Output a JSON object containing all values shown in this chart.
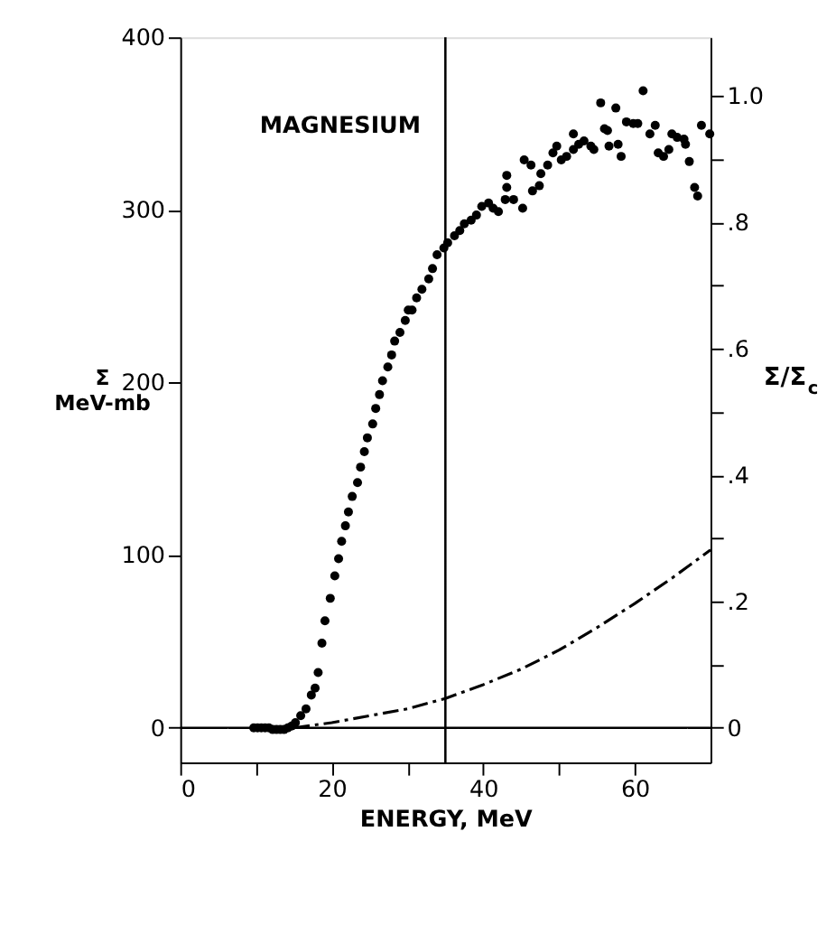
{
  "chart_data": {
    "type": "scatter",
    "xlabel": "ENERGY, MeV",
    "ylabel": "Σ MeV-mb",
    "y2label": "Σ/Σ$_{c}$",
    "annotations": [
      "MAGNESIUM"
    ],
    "xlim": [
      0,
      70
    ],
    "xticks": [
      0,
      {
        "value": 10,
        "label": null
      },
      20,
      {
        "value": 30,
        "label": null
      },
      40,
      {
        "value": 50,
        "label": null
      },
      60
    ],
    "ylim": [
      -20,
      400
    ],
    "yticks": [
      0,
      100,
      200,
      300,
      400
    ],
    "y2lim": [
      -0.0546,
      1.093
    ],
    "y2ticks": [
      {
        "value": 0,
        "label": "0"
      },
      {
        "value": 0.1,
        "label": null
      },
      {
        "value": 0.2,
        "label": ".2"
      },
      {
        "value": 0.3,
        "label": null
      },
      {
        "value": 0.4,
        "label": ".4"
      },
      {
        "value": 0.5,
        "label": null
      },
      {
        "value": 0.6,
        "label": ".6"
      },
      {
        "value": 0.7,
        "label": null
      },
      {
        "value": 0.8,
        "label": ".8"
      },
      {
        "value": 0.9,
        "label": null
      },
      {
        "value": 1.0,
        "label": "1.0"
      }
    ],
    "grid": false,
    "ref_lines": [
      {
        "axis": "x",
        "value": 35,
        "color": "#000000"
      },
      {
        "axis": "y2",
        "value": 0,
        "color": "#000000"
      }
    ],
    "series": [
      {
        "marker": "circle",
        "color": "#000000",
        "x": [
          9.7,
          10.2,
          10.7,
          11.2,
          11.7,
          12.2,
          12.7,
          13.2,
          13.7,
          14.2,
          14.7,
          15.2,
          15.9,
          16.6,
          17.3,
          17.8,
          18.2,
          18.7,
          19.1,
          19.8,
          20.4,
          20.9,
          21.3,
          21.8,
          22.2,
          22.7,
          23.4,
          23.8,
          24.3,
          24.7,
          25.4,
          25.8,
          26.3,
          26.7,
          27.4,
          27.9,
          28.3,
          29.0,
          29.7,
          30.1,
          30.6,
          31.2,
          31.9,
          32.8,
          33.3,
          33.9,
          34.8,
          35.3,
          36.2,
          36.9,
          37.5,
          38.4,
          39.1,
          39.8,
          40.7,
          41.3,
          42.0,
          42.9,
          43.1,
          43.1,
          44.0,
          45.2,
          45.4,
          46.3,
          46.5,
          47.4,
          47.6,
          48.5,
          49.2,
          49.7,
          50.3,
          51.0,
          51.9,
          51.9,
          52.6,
          53.3,
          54.2,
          54.6,
          55.5,
          56.0,
          56.4,
          56.6,
          57.5,
          57.8,
          58.2,
          58.9,
          59.8,
          60.4,
          61.1,
          62.0,
          62.7,
          63.1,
          63.8,
          64.5,
          64.9,
          65.6,
          66.5,
          66.7,
          67.2,
          67.9,
          68.3,
          68.8,
          69.9
        ],
        "values": [
          0,
          0,
          0,
          0,
          0,
          -1,
          -1,
          -1,
          -1,
          0,
          1,
          3,
          7,
          11,
          19,
          23,
          32,
          49,
          62,
          75,
          88,
          98,
          108,
          117,
          125,
          134,
          142,
          151,
          160,
          168,
          176,
          185,
          193,
          201,
          209,
          216,
          224,
          229,
          236,
          242,
          242,
          249,
          254,
          260,
          266,
          274,
          278,
          281,
          285,
          288,
          292,
          294,
          297,
          302,
          304,
          301,
          299,
          306,
          313,
          320,
          306,
          301,
          329,
          326,
          311,
          314,
          321,
          326,
          333,
          337,
          329,
          331,
          335,
          344,
          338,
          340,
          337,
          335,
          362,
          347,
          346,
          337,
          359,
          338,
          331,
          351,
          350,
          350,
          369,
          344,
          349,
          333,
          331,
          335,
          344,
          342,
          341,
          338,
          328,
          313,
          308,
          349,
          344
        ]
      },
      {
        "type": "line",
        "line_style": "dashed",
        "marker": "none",
        "color": "#000000",
        "x": [
          15,
          20,
          25,
          30,
          35,
          40,
          45,
          50,
          55,
          60,
          65,
          70
        ],
        "values": [
          0,
          3,
          7,
          11,
          17,
          25,
          34,
          45,
          58,
          72,
          87,
          103
        ]
      }
    ]
  }
}
